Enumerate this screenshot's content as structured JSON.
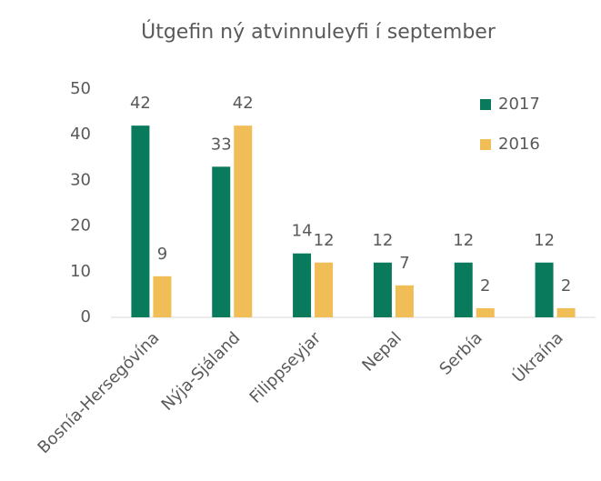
{
  "chart_data": {
    "type": "bar",
    "title": "Útgefin ný atvinnuleyfi í september",
    "categories": [
      "Bosnía-Hersegóvína",
      "Nýja-Sjáland",
      "Filippseyjar",
      "Nepal",
      "Serbía",
      "Úkraína"
    ],
    "series": [
      {
        "name": "2017",
        "color": "#0a7a5c",
        "values": [
          42,
          33,
          14,
          12,
          12,
          12
        ]
      },
      {
        "name": "2016",
        "color": "#f0bd57",
        "values": [
          9,
          42,
          12,
          7,
          2,
          2
        ]
      }
    ],
    "ylim": [
      0,
      50
    ],
    "yticks": [
      0,
      10,
      20,
      30,
      40,
      50
    ],
    "grid": false,
    "legend": "upper right"
  }
}
